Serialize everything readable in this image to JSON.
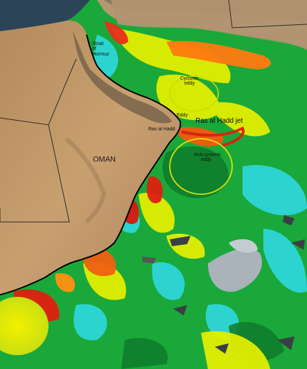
{
  "map": {
    "labels": {
      "strait_line1": "Strait",
      "strait_line2": "of",
      "strait_line3": "Hormuz",
      "cyclonic_line1": "Cyclonic",
      "cyclonic_line2": "eddy",
      "eddy_small": "Eddy",
      "ras_al_hadd": "Ras al Hadd",
      "ras_al_hadd_jet": "Ras al Hadd jet",
      "oman": "OMAN",
      "anticyclonic_line1": "Anti-cyclonic",
      "anticyclonic_line2": "eddy"
    },
    "colors": {
      "land": "#c19a6b",
      "mountains": "#8a7356",
      "ocean_low": "#0b6b2f",
      "ocean_mid": "#22b833",
      "ocean_high_yellow": "#e8f000",
      "ocean_peak_red": "#e01a10",
      "cyan": "#2fe0e8",
      "clouds": "#a8b0b8",
      "border": "#2a2a2a"
    }
  }
}
